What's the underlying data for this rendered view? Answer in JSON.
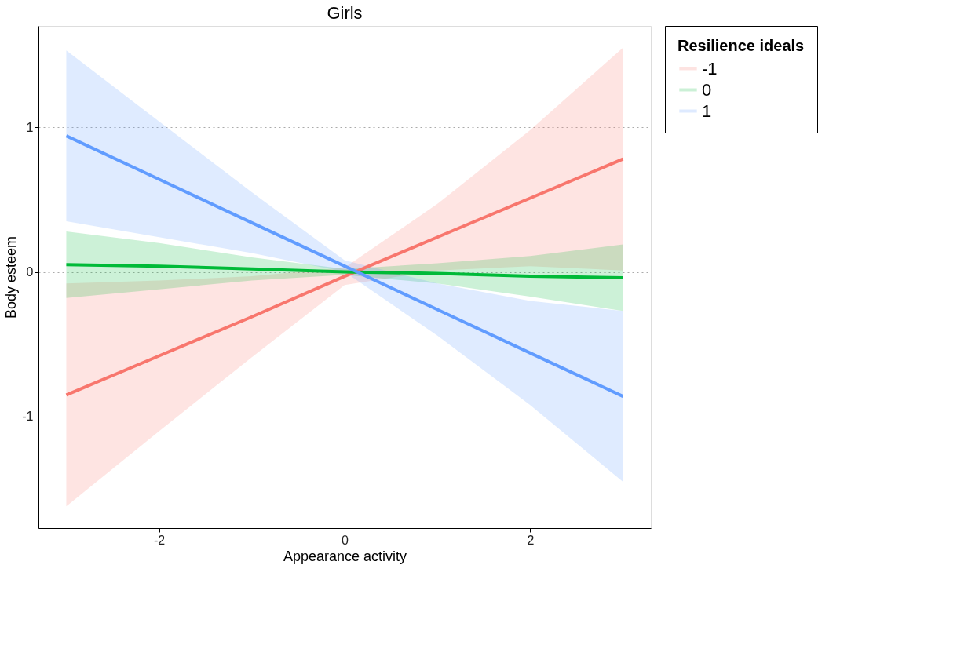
{
  "chart_data": {
    "type": "line",
    "title": "Girls",
    "xlabel": "Appearance activity",
    "ylabel": "Body esteem",
    "legend_title": "Resilience ideals",
    "x": [
      -3,
      -2,
      -1,
      0,
      1,
      2,
      3
    ],
    "series": [
      {
        "name": "-1",
        "color": "#f8766d",
        "values": [
          -0.85,
          -0.58,
          -0.31,
          -0.03,
          0.24,
          0.51,
          0.78
        ],
        "lower": [
          -1.62,
          -1.1,
          -0.59,
          -0.09,
          0.01,
          0.04,
          0.01
        ],
        "upper": [
          -0.08,
          -0.06,
          -0.03,
          0.03,
          0.47,
          0.98,
          1.55
        ]
      },
      {
        "name": "0",
        "color": "#00ba38",
        "values": [
          0.05,
          0.04,
          0.02,
          0.0,
          -0.01,
          -0.03,
          -0.04
        ],
        "lower": [
          -0.18,
          -0.12,
          -0.06,
          -0.02,
          -0.08,
          -0.17,
          -0.27
        ],
        "upper": [
          0.28,
          0.2,
          0.1,
          0.02,
          0.06,
          0.11,
          0.19
        ]
      },
      {
        "name": "1",
        "color": "#619cff",
        "values": [
          0.94,
          0.64,
          0.34,
          0.04,
          -0.26,
          -0.56,
          -0.86
        ],
        "lower": [
          0.35,
          0.24,
          0.13,
          0.0,
          -0.44,
          -0.92,
          -1.45
        ],
        "upper": [
          1.53,
          1.04,
          0.55,
          0.08,
          -0.08,
          -0.2,
          -0.27
        ]
      }
    ],
    "xlim": [
      -3.3,
      3.3
    ],
    "ylim": [
      -1.77,
      1.7
    ],
    "xticks": [
      -2,
      0,
      2
    ],
    "yticks": [
      -1,
      0,
      1
    ],
    "grid": "y",
    "legend": "right",
    "marker": "none",
    "line_style": "solid"
  }
}
